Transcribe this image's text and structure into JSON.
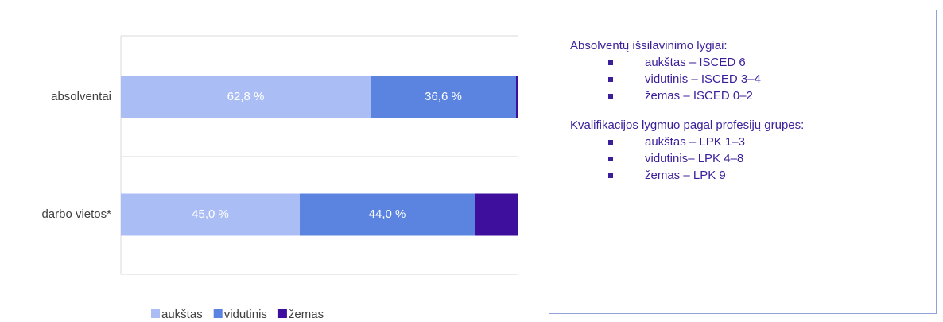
{
  "chart_data": {
    "type": "stacked-bar-horizontal",
    "categories": [
      "absolventai",
      "darbo vietos*"
    ],
    "series": [
      {
        "name": "aukštas",
        "color": "#abbdf5",
        "values": [
          62.8,
          45.0
        ],
        "value_labels": [
          "62,8 %",
          "45,0 %"
        ]
      },
      {
        "name": "vidutinis",
        "color": "#5b84e0",
        "values": [
          36.6,
          44.0
        ],
        "value_labels": [
          "36,6 %",
          "44,0 %"
        ]
      },
      {
        "name": "žemas",
        "color": "#3d0f9c",
        "values": [
          0.6,
          11.0
        ]
      }
    ],
    "xlim": [
      0,
      100
    ],
    "legend": "bottom"
  },
  "info_box": {
    "groups": [
      {
        "heading": "Absolventų išsilavinimo lygiai:",
        "items": [
          "aukštas – ISCED 6",
          "vidutinis – ISCED 3–4",
          "žemas – ISCED 0–2"
        ]
      },
      {
        "heading": "Kvalifikacijos lygmuo pagal profesijų grupes:",
        "items": [
          "aukštas – LPK 1–3",
          "vidutinis– LPK 4–8",
          "žemas – LPK 9"
        ]
      }
    ]
  }
}
